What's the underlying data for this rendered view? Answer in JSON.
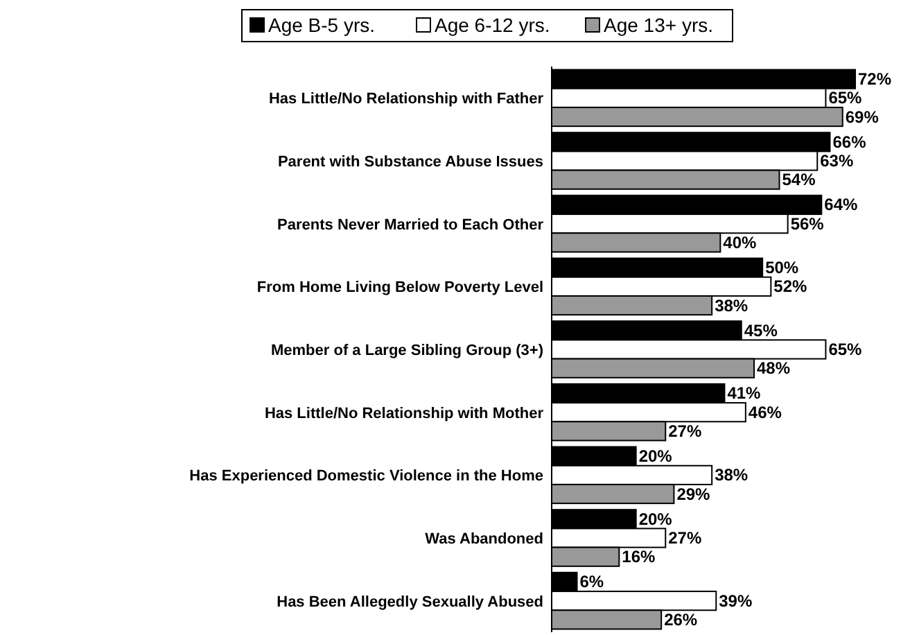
{
  "chart_data": {
    "type": "bar",
    "orientation": "horizontal",
    "legend": "top",
    "categories": [
      "Has Little/No Relationship with Father",
      "Parent with Substance Abuse Issues",
      "Parents Never Married to Each Other",
      "From Home Living Below Poverty Level",
      "Member of a Large Sibling Group (3+)",
      "Has Little/No Relationship with Mother",
      "Has Experienced Domestic Violence in the Home",
      "Was Abandoned",
      "Has Been Allegedly Sexually Abused"
    ],
    "series": [
      {
        "name": "Age B-5 yrs.",
        "color": "#000000",
        "values": [
          72,
          66,
          64,
          50,
          45,
          41,
          20,
          20,
          6
        ],
        "value_labels": [
          "72%",
          "66%",
          "64%",
          "50%",
          "45%",
          "41%",
          "20%",
          "20%",
          "6%"
        ]
      },
      {
        "name": "Age 6-12 yrs.",
        "color": "#ffffff",
        "values": [
          65,
          63,
          56,
          52,
          65,
          46,
          38,
          27,
          39
        ],
        "value_labels": [
          "65%",
          "63%",
          "56%",
          "52%",
          "65%",
          "46%",
          "38%",
          "27%",
          "39%"
        ]
      },
      {
        "name": "Age 13+ yrs.",
        "color": "#999999",
        "values": [
          69,
          54,
          40,
          38,
          48,
          27,
          29,
          16,
          26
        ],
        "value_labels": [
          "69%",
          "54%",
          "40%",
          "38%",
          "48%",
          "27%",
          "29%",
          "16%",
          "26%"
        ]
      }
    ]
  }
}
